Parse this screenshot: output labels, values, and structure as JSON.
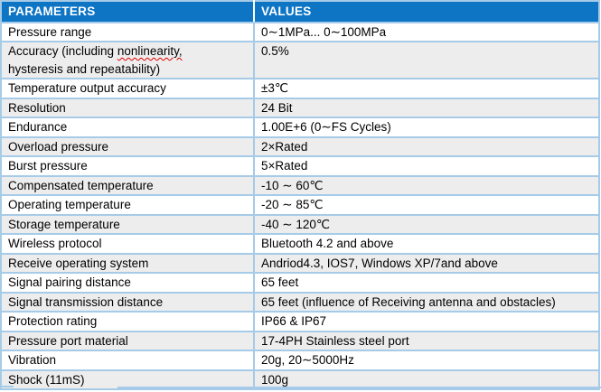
{
  "colors": {
    "header_bg": "#0e75c5",
    "header_text": "#ffffff",
    "border": "#a6cbe8",
    "header_divider": "#ffffff",
    "alt_row_bg": "#ededed",
    "row_bg": "#ffffff",
    "text": "#000000",
    "squiggle": "#e00000",
    "page_bg": "#ffffff"
  },
  "table": {
    "columns": [
      "PARAMETERS",
      "VALUES"
    ],
    "rows": [
      {
        "param": "Pressure range",
        "value": "0∼1MPa... 0∼100MPa"
      },
      {
        "param_parts": {
          "line1_start": "Accuracy (including ",
          "underlined": "nonlinearity,",
          "line2": "hysteresis and repeatability)"
        },
        "value": "0.5%"
      },
      {
        "param": "Temperature output accuracy",
        "value": "±3℃"
      },
      {
        "param": "Resolution",
        "value": "24 Bit"
      },
      {
        "param": "Endurance",
        "value": "1.00E+6 (0∼FS Cycles)"
      },
      {
        "param": "Overload pressure",
        "value": "2×Rated"
      },
      {
        "param": "Burst pressure",
        "value": "5×Rated"
      },
      {
        "param": "Compensated temperature",
        "value": "-10 ∼ 60℃"
      },
      {
        "param": "Operating temperature",
        "value": "-20 ∼ 85℃"
      },
      {
        "param": "Storage temperature",
        "value": "-40 ∼ 120℃"
      },
      {
        "param": "Wireless protocol",
        "value": "Bluetooth 4.2 and above"
      },
      {
        "param": "Receive operating system",
        "value": "Andriod4.3, IOS7, Windows XP/7and above"
      },
      {
        "param": "Signal pairing distance",
        "value": "65 feet"
      },
      {
        "param": "Signal transmission distance",
        "value": "65 feet (influence of Receiving antenna and obstacles)"
      },
      {
        "param": "Protection rating",
        "value": "IP66 & IP67"
      },
      {
        "param": "Pressure port material",
        "value": "17-4PH Stainless steel port"
      },
      {
        "param": "Vibration",
        "value": "20g, 20∼5000Hz"
      },
      {
        "param": "Shock (11mS)",
        "value": "100g"
      }
    ]
  }
}
